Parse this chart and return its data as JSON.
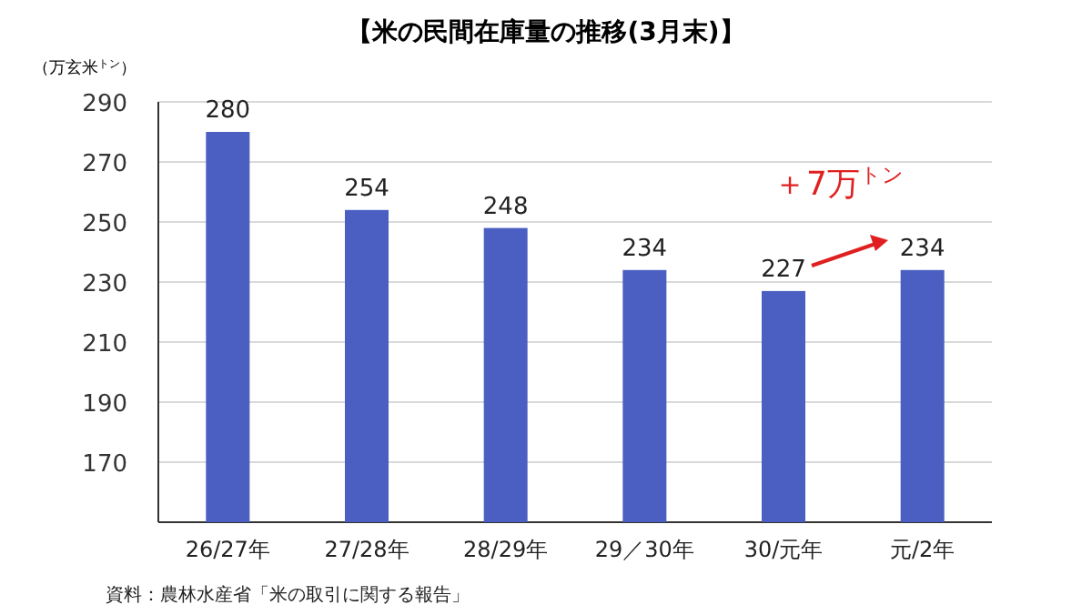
{
  "chart_data": {
    "type": "bar",
    "title": "【米の民間在庫量の推移(3月末)】",
    "ylabel": "（万玄米$^{トン}$）",
    "categories": [
      "26/27年",
      "27/28年",
      "28/29年",
      "29／30年",
      "30/元年",
      "元/2年"
    ],
    "values": [
      280,
      254,
      248,
      234,
      227,
      234
    ],
    "color": "#4a5fc1",
    "ylim": [
      150,
      290
    ],
    "yticks": [
      170,
      190,
      210,
      230,
      250,
      270,
      290
    ],
    "grid": "y",
    "data_labels": true,
    "annotations": [
      "＋7万$^{トン}$",
      "資料：農林水産省「米の取引に関する報告」"
    ]
  }
}
